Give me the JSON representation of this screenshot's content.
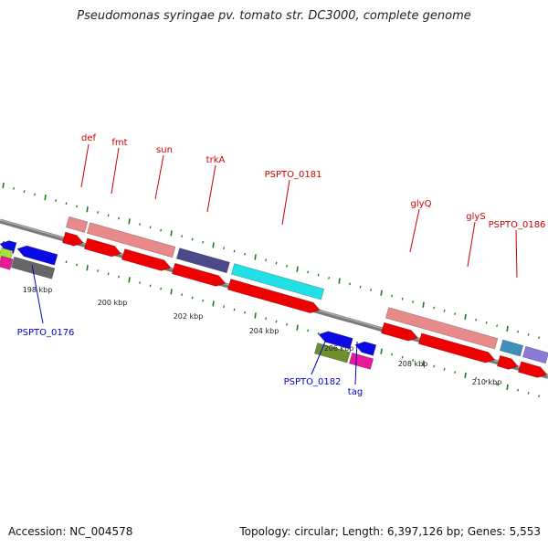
{
  "title": "Pseudomonas syringae pv. tomato str. DC3000, complete genome",
  "footer": {
    "accession": "Accession: NC_004578",
    "topology": "Topology: circular; Length: 6,397,126 bp; Genes: 5,553"
  },
  "scale_labels": [
    "198 kbp",
    "200 kbp",
    "202 kbp",
    "204 kbp",
    "206 kbp",
    "208 kbp",
    "210 kbp"
  ],
  "gene_labels": {
    "def": "def",
    "fmt": "fmt",
    "sun": "sun",
    "trkA": "trkA",
    "PSPTO_0181": "PSPTO_0181",
    "glyQ": "glyQ",
    "glyS": "glyS",
    "PSPTO_0186": "PSPTO_0186",
    "PSPTO_0176": "PSPTO_0176",
    "PSPTO_0182": "PSPTO_0182",
    "tag": "tag"
  },
  "colors": {
    "backbone": "#7a7a7a",
    "tick": "#1a7a1a",
    "label_forward": "#cc0000",
    "label_reverse": "#0000cc",
    "cds": "#ee0000",
    "gene_pink": "#e88a8a",
    "indigo": "#4a4a8a",
    "cyan": "#22e0e8",
    "steel": "#3f8fb8",
    "lavender": "#8a7ad8",
    "blue": "#0a0ae6",
    "olive": "#6f8f2f",
    "magenta": "#e8189a",
    "gray": "#666666",
    "lime": "#a8e040"
  }
}
